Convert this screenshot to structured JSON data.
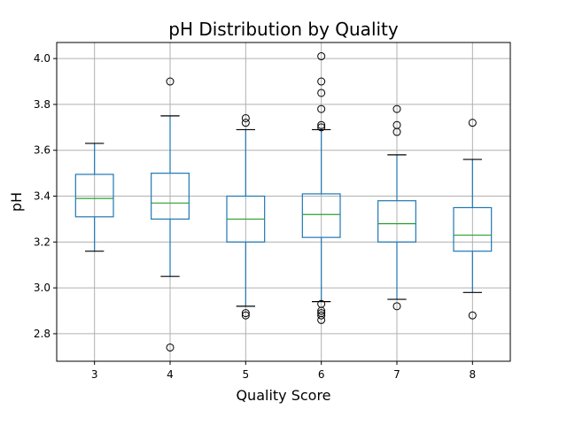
{
  "chart_data": {
    "type": "box",
    "title": "pH Distribution by Quality",
    "xlabel": "Quality Score",
    "ylabel": "pH",
    "ylim": [
      2.68,
      4.07
    ],
    "yticks": [
      "2.8",
      "3.0",
      "3.2",
      "3.4",
      "3.6",
      "3.8",
      "4.0"
    ],
    "grid": true,
    "colors": {
      "box": "#1f77b4",
      "median": "#2ca02c",
      "whisker_cap": "#000000",
      "grid": "#b0b0b0"
    },
    "boxes": [
      {
        "category": "3",
        "whislo": 3.16,
        "q1": 3.31,
        "median": 3.39,
        "q3": 3.495,
        "whishi": 3.63,
        "fliers": []
      },
      {
        "category": "4",
        "whislo": 3.05,
        "q1": 3.3,
        "median": 3.37,
        "q3": 3.5,
        "whishi": 3.75,
        "fliers": [
          3.9,
          2.74
        ]
      },
      {
        "category": "5",
        "whislo": 2.92,
        "q1": 3.2,
        "median": 3.3,
        "q3": 3.4,
        "whishi": 3.69,
        "fliers": [
          3.74,
          3.72,
          2.89,
          2.88
        ]
      },
      {
        "category": "6",
        "whislo": 2.94,
        "q1": 3.22,
        "median": 3.32,
        "q3": 3.41,
        "whishi": 3.69,
        "fliers": [
          4.01,
          3.9,
          3.85,
          3.78,
          3.71,
          3.7,
          2.93,
          2.9,
          2.89,
          2.88,
          2.86
        ]
      },
      {
        "category": "7",
        "whislo": 2.95,
        "q1": 3.2,
        "median": 3.28,
        "q3": 3.38,
        "whishi": 3.58,
        "fliers": [
          3.78,
          3.71,
          3.68,
          2.92
        ]
      },
      {
        "category": "8",
        "whislo": 2.98,
        "q1": 3.16,
        "median": 3.23,
        "q3": 3.35,
        "whishi": 3.56,
        "fliers": [
          3.72,
          2.88
        ]
      }
    ]
  }
}
